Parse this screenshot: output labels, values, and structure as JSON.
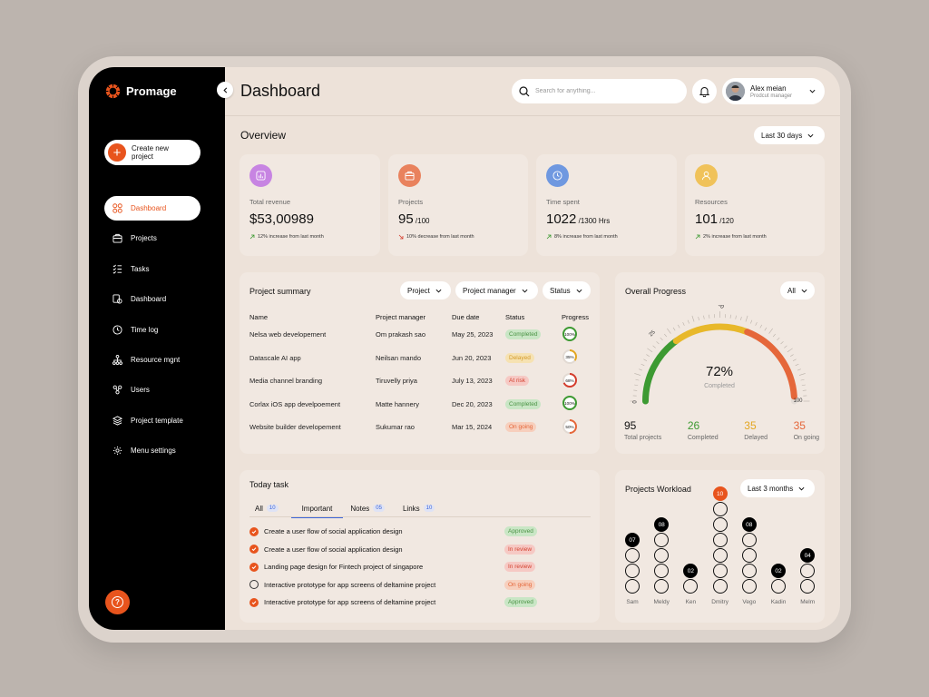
{
  "app": {
    "name": "Promage"
  },
  "sidebar": {
    "create_label": "Create new project",
    "items": [
      {
        "label": "Dashboard",
        "icon": "grid-icon",
        "active": true
      },
      {
        "label": "Projects",
        "icon": "briefcase-icon"
      },
      {
        "label": "Tasks",
        "icon": "checklist-icon"
      },
      {
        "label": "Dashboard",
        "icon": "gear-doc-icon"
      },
      {
        "label": "Time log",
        "icon": "clock-icon"
      },
      {
        "label": "Resource mgnt",
        "icon": "hierarchy-icon"
      },
      {
        "label": "Users",
        "icon": "users-icon"
      },
      {
        "label": "Project template",
        "icon": "layers-icon"
      },
      {
        "label": "Menu settings",
        "icon": "settings-icon"
      }
    ]
  },
  "header": {
    "title": "Dashboard",
    "search_placeholder": "Search for anything...",
    "user": {
      "name": "Alex meian",
      "role": "Prodcut manager"
    }
  },
  "overview": {
    "title": "Overview",
    "range": "Last 30 days",
    "cards": [
      {
        "label": "Total revenue",
        "value": "$53,00989",
        "suffix": "",
        "note": "12% increase from last month",
        "trend": "up",
        "icon": "bar-chart-icon",
        "color": "#c784e2"
      },
      {
        "label": "Projects",
        "value": "95",
        "suffix": " /100",
        "note": "10% decrease from last month",
        "trend": "down",
        "icon": "briefcase-icon",
        "color": "#e9825d"
      },
      {
        "label": "Time spent",
        "value": "1022",
        "suffix": " /1300 Hrs",
        "note": "8% increase from last month",
        "trend": "up",
        "icon": "clock-icon",
        "color": "#6f98e0"
      },
      {
        "label": "Resources",
        "value": "101",
        "suffix": " /120",
        "note": "2% increase from last month",
        "trend": "up",
        "icon": "user-icon",
        "color": "#f0c25a"
      }
    ]
  },
  "project_summary": {
    "title": "Project summary",
    "filters": [
      "Project",
      "Project manager",
      "Status"
    ],
    "columns": [
      "Name",
      "Project manager",
      "Due date",
      "Status",
      "Progress"
    ],
    "rows": [
      {
        "name": "Nelsa web developement",
        "manager": "Om prakash sao",
        "due": "May 25, 2023",
        "status": "Completed",
        "kind": "completed",
        "progress": 100,
        "progress_label": "100%",
        "color": "#3d9a32"
      },
      {
        "name": "Datascale AI app",
        "manager": "Neilsan mando",
        "due": "Jun 20, 2023",
        "status": "Delayed",
        "kind": "delayed",
        "progress": 35,
        "progress_label": "35%",
        "color": "#e3a621"
      },
      {
        "name": "Media channel branding",
        "manager": "Tiruvelly priya",
        "due": "July 13, 2023",
        "status": "At risk",
        "kind": "risk",
        "progress": 68,
        "progress_label": "68%",
        "color": "#d43c2c"
      },
      {
        "name": "Corlax iOS app develpoement",
        "manager": "Matte hannery",
        "due": "Dec 20, 2023",
        "status": "Completed",
        "kind": "completed",
        "progress": 100,
        "progress_label": "100%",
        "color": "#3d9a32"
      },
      {
        "name": "Website builder developement",
        "manager": "Sukumar rao",
        "due": "Mar 15, 2024",
        "status": "On going",
        "kind": "ongoing",
        "progress": 50,
        "progress_label": "50%",
        "color": "#e5673a"
      }
    ]
  },
  "overall_progress": {
    "title": "Overall Progress",
    "filter": "All",
    "percent": 72,
    "percent_label": "72%",
    "sub": "Completed",
    "ticks": [
      "0",
      "25",
      "50",
      "100"
    ],
    "stats": [
      {
        "num": "95",
        "label": "Total projects",
        "color": "#111111"
      },
      {
        "num": "26",
        "label": "Completed",
        "color": "#3d9a32"
      },
      {
        "num": "35",
        "label": "Delayed",
        "color": "#e3a621"
      },
      {
        "num": "35",
        "label": "On going",
        "color": "#e5673a"
      }
    ]
  },
  "today_task": {
    "title": "Today task",
    "tabs": [
      {
        "label": "All",
        "count": "10"
      },
      {
        "label": "Important",
        "count": "",
        "active": true
      },
      {
        "label": "Notes",
        "count": "05"
      },
      {
        "label": "Links",
        "count": "10"
      }
    ],
    "tasks": [
      {
        "text": "Create a user flow of social application design",
        "done": true,
        "status": "Approved",
        "kind": "approved"
      },
      {
        "text": "Create a user flow of social application design",
        "done": true,
        "status": "In review",
        "kind": "review"
      },
      {
        "text": "Landing page design for Fintech project of singapore",
        "done": true,
        "status": "In review",
        "kind": "review"
      },
      {
        "text": "Interactive prototype for app screens of deltamine project",
        "done": false,
        "status": "On going",
        "kind": "ongoing"
      },
      {
        "text": "Interactive prototype for app screens of deltamine project",
        "done": true,
        "status": "Approved",
        "kind": "approved"
      }
    ]
  },
  "workload": {
    "title": "Projects Workload",
    "range": "Last 3 months",
    "people": [
      {
        "name": "Sam",
        "value": "07",
        "count": 3
      },
      {
        "name": "Meldy",
        "value": "08",
        "count": 4
      },
      {
        "name": "Ken",
        "value": "02",
        "count": 1
      },
      {
        "name": "Dmitry",
        "value": "10",
        "count": 6,
        "highlight": true
      },
      {
        "name": "Vego",
        "value": "08",
        "count": 4
      },
      {
        "name": "Kadin",
        "value": "02",
        "count": 1
      },
      {
        "name": "Melm",
        "value": "04",
        "count": 2
      }
    ]
  }
}
